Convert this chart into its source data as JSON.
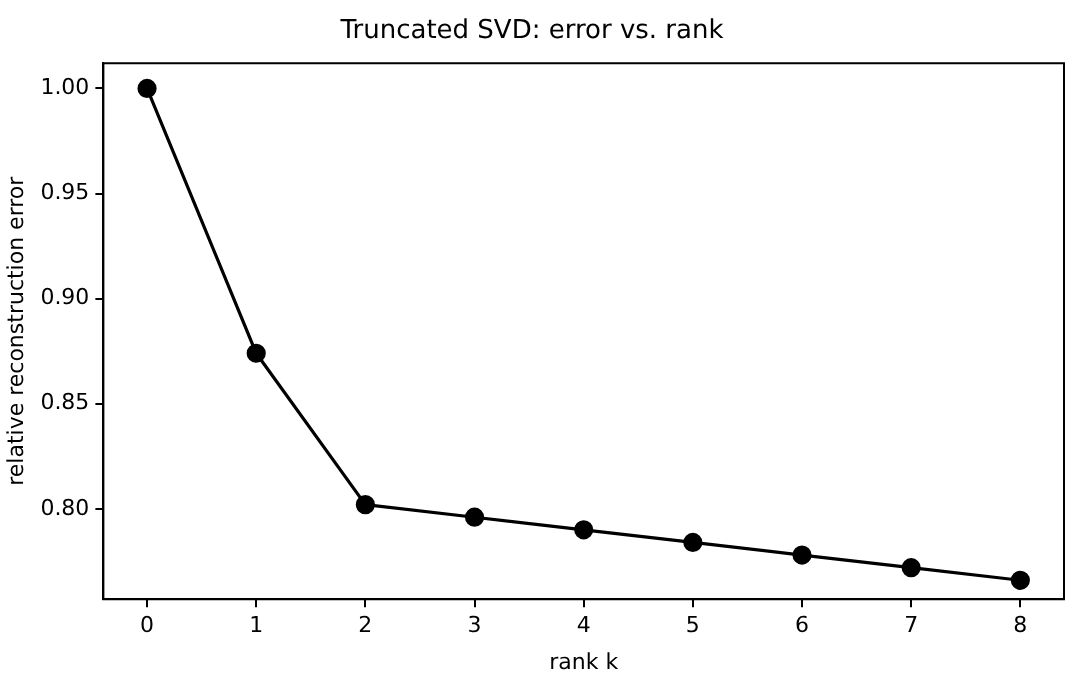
{
  "chart_data": {
    "type": "line",
    "title": "Truncated SVD: error vs. rank",
    "xlabel": "rank k",
    "ylabel": "relative reconstruction error",
    "x": [
      0,
      1,
      2,
      3,
      4,
      5,
      6,
      7,
      8
    ],
    "series": [
      {
        "color": "#000000",
        "values": [
          1.0,
          0.874,
          0.802,
          0.796,
          0.79,
          0.784,
          0.778,
          0.772,
          0.766
        ]
      }
    ],
    "xlim": [
      -0.4,
      8.4
    ],
    "xticks": [
      0,
      1,
      2,
      3,
      4,
      5,
      6,
      7,
      8
    ],
    "ylim": [
      0.757,
      1.012
    ],
    "yticks": [
      {
        "value": 0.8,
        "label": "0.80"
      },
      {
        "value": 0.85,
        "label": "0.85"
      },
      {
        "value": 0.9,
        "label": "0.90"
      },
      {
        "value": 0.95,
        "label": "0.95"
      },
      {
        "value": 1.0,
        "label": "1.00"
      }
    ],
    "grid": false,
    "legend": false,
    "marker": "circle",
    "line_style": "solid"
  }
}
